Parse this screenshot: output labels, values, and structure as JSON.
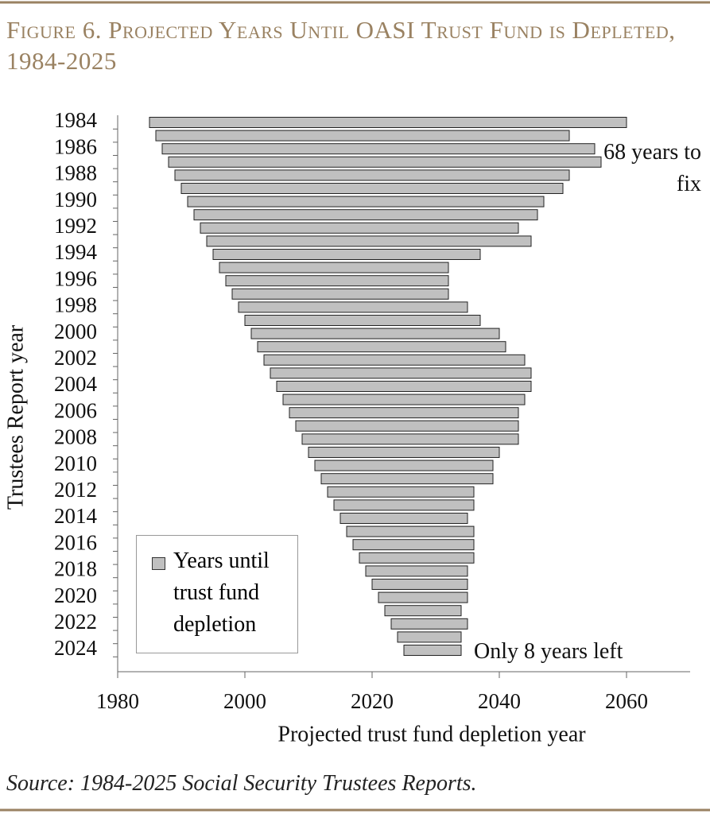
{
  "chart_data": {
    "type": "floating-barh",
    "title": "Figure 6. Projected Years Until OASI Trust Fund is Depleted, 1984-2025",
    "x_label": "Projected trust fund depletion year",
    "y_label": "Trustees Report year",
    "source": "Source: 1984-2025 Social Security Trustees Reports.",
    "annotations": [
      "68 years to fix",
      "Only 8 years left"
    ],
    "categories": [
      "1984",
      null,
      "1986",
      null,
      "1988",
      null,
      "1990",
      null,
      "1992",
      null,
      "1994",
      null,
      "1996",
      null,
      "1998",
      null,
      "2000",
      null,
      "2002",
      null,
      "2004",
      null,
      "2006",
      null,
      "2008",
      null,
      "2010",
      null,
      "2012",
      null,
      "2014",
      null,
      "2016",
      null,
      "2018",
      null,
      "2020",
      null,
      "2022",
      null,
      "2024"
    ],
    "series": [
      {
        "name": "Years until trust fund depletion",
        "color": "#c0c0c0",
        "starts": [
          1985,
          1986,
          1987,
          1988,
          1989,
          1990,
          1991,
          1992,
          1993,
          1994,
          1995,
          1996,
          1997,
          1998,
          1999,
          2000,
          2001,
          2002,
          2003,
          2004,
          2005,
          2006,
          2007,
          2008,
          2009,
          2010,
          2011,
          2012,
          2013,
          2014,
          2015,
          2016,
          2017,
          2018,
          2019,
          2020,
          2021,
          2022,
          2023,
          2024,
          2025
        ],
        "values": [
          2060,
          2051,
          2055,
          2056,
          2051,
          2050,
          2047,
          2046,
          2043,
          2045,
          2037,
          2032,
          2032,
          2032,
          2035,
          2037,
          2040,
          2041,
          2044,
          2045,
          2045,
          2044,
          2043,
          2043,
          2043,
          2040,
          2039,
          2039,
          2036,
          2036,
          2035,
          2036,
          2036,
          2036,
          2035,
          2035,
          2035,
          2034,
          2035,
          2034,
          2034
        ]
      }
    ],
    "xlim": [
      1980,
      2070
    ],
    "xticks": [
      1980,
      2000,
      2020,
      2040,
      2060
    ]
  }
}
